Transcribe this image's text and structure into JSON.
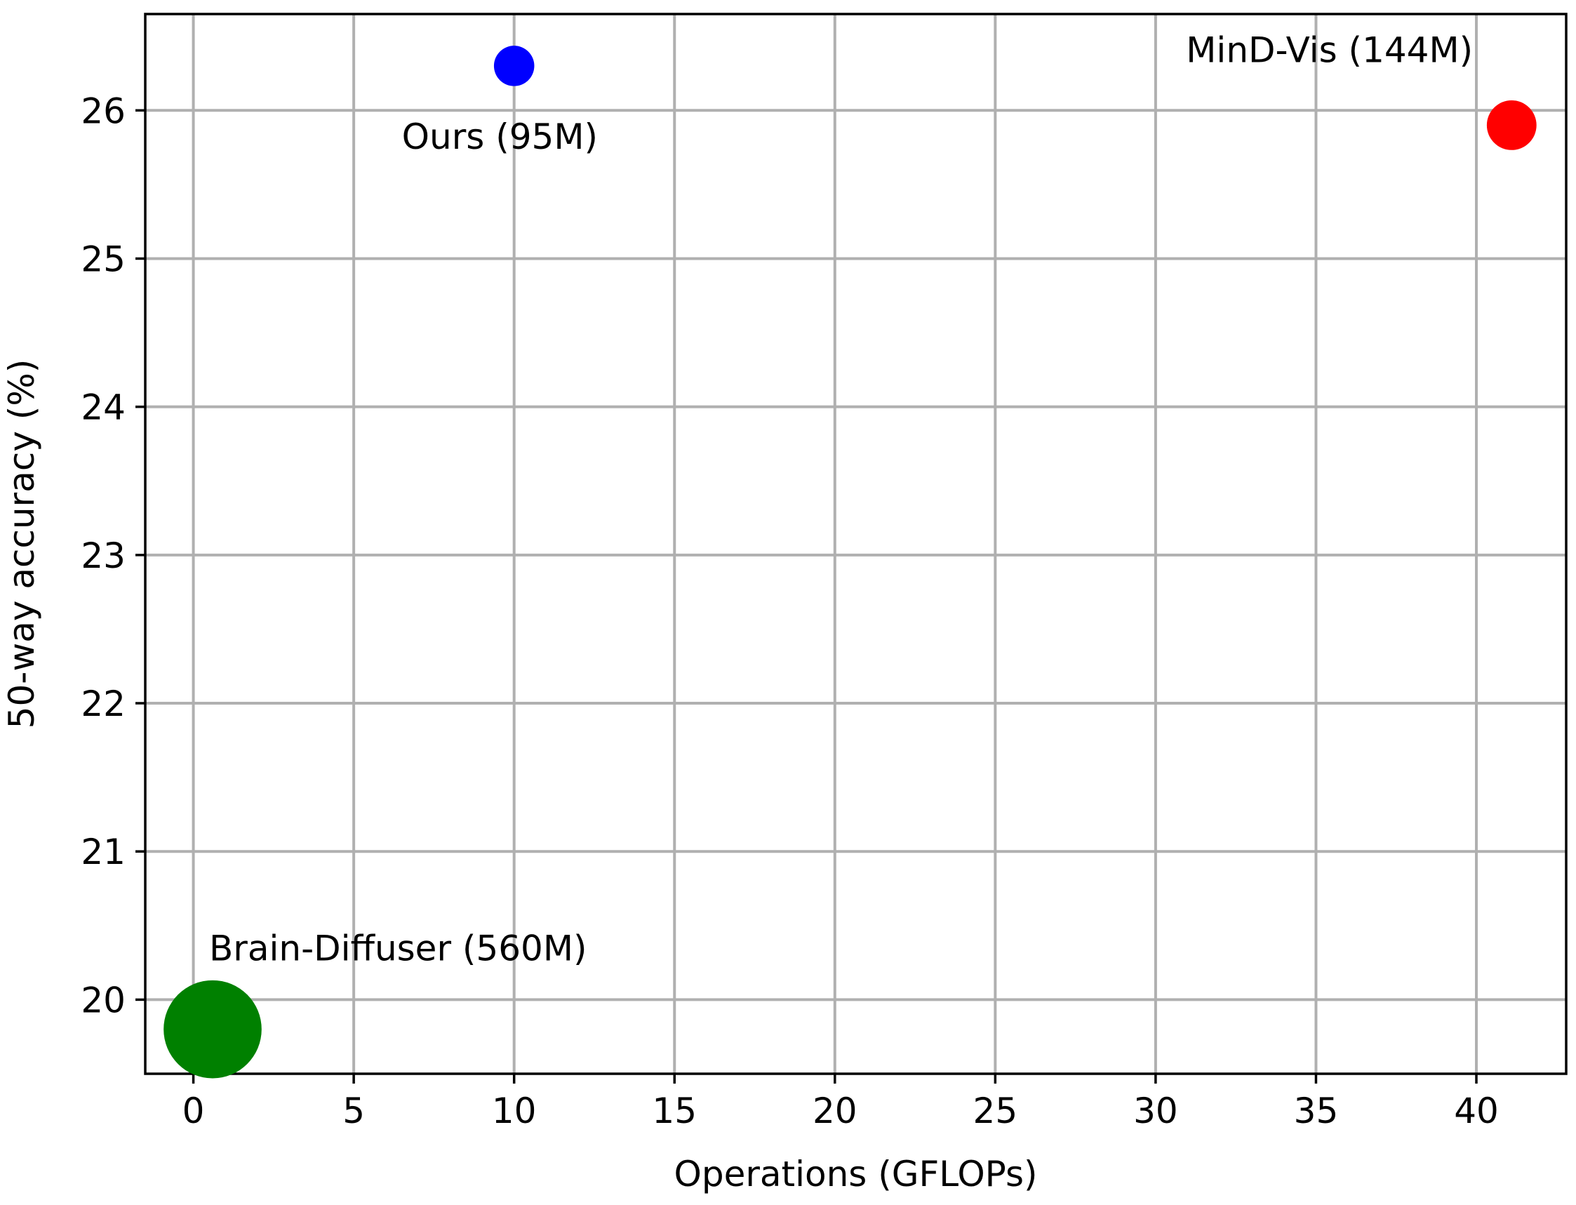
{
  "chart_data": {
    "type": "scatter",
    "title": "",
    "xlabel": "Operations (GFLOPs)",
    "ylabel": "50-way accuracy (%)",
    "xlim": [
      -1.5,
      42.8
    ],
    "ylim": [
      19.5,
      26.65
    ],
    "xticks": [
      0,
      5,
      10,
      15,
      20,
      25,
      30,
      35,
      40
    ],
    "yticks": [
      20,
      21,
      22,
      23,
      24,
      25,
      26
    ],
    "grid": true,
    "legend": "none",
    "points": [
      {
        "label": "Ours (95M)",
        "x": 10,
        "y": 26.3,
        "params_m": 95,
        "color": "#0000ff"
      },
      {
        "label": "MinD-Vis (144M)",
        "x": 41.1,
        "y": 25.9,
        "params_m": 144,
        "color": "#ff0000"
      },
      {
        "label": "Brain-Diffuser (560M)",
        "x": 0.6,
        "y": 19.8,
        "params_m": 560,
        "color": "#008000"
      }
    ]
  }
}
